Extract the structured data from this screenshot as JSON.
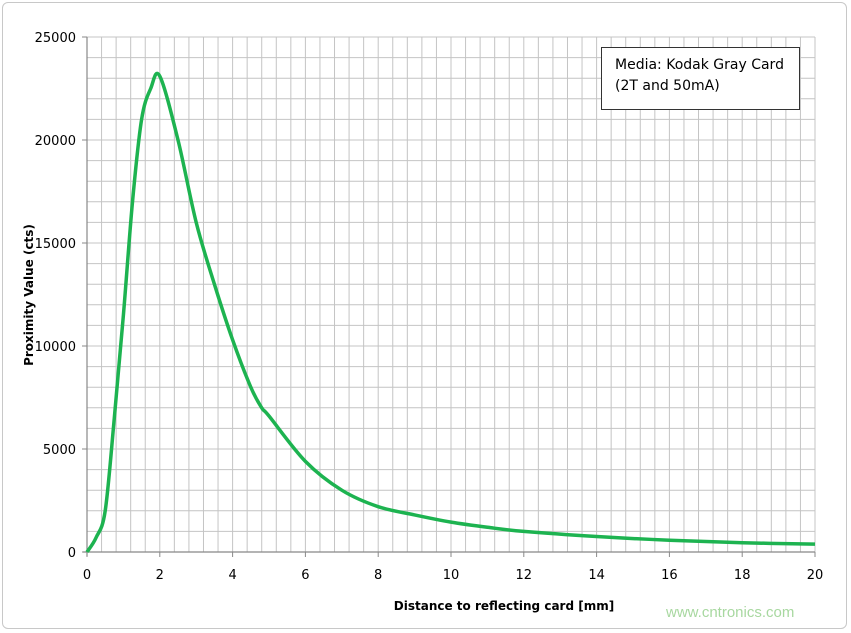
{
  "chart_data": {
    "type": "line",
    "xlabel": "Distance  to reflecting card [mm]",
    "ylabel": "Proximity Value (cts)",
    "xlim": [
      0,
      20
    ],
    "ylim": [
      0,
      25000
    ],
    "xticks": [
      0,
      2,
      4,
      6,
      8,
      10,
      12,
      14,
      16,
      18,
      20
    ],
    "yticks": [
      0,
      5000,
      10000,
      15000,
      20000,
      25000
    ],
    "grid": true,
    "legend_text": [
      "Media: Kodak Gray Card",
      "(2T and 50mA)"
    ],
    "legend_placement": "top-right",
    "series": [
      {
        "color": "#1db350",
        "x": [
          0,
          0.25,
          0.5,
          0.75,
          1,
          1.25,
          1.5,
          1.75,
          2,
          2.5,
          3,
          3.5,
          4,
          4.5,
          4.8,
          5,
          6,
          7,
          8,
          9,
          10,
          11,
          12,
          14,
          16,
          18,
          20
        ],
        "y": [
          0,
          700,
          2000,
          6500,
          11500,
          17000,
          21000,
          22500,
          23100,
          20000,
          16000,
          13000,
          10300,
          8000,
          7000,
          6600,
          4400,
          3000,
          2200,
          1800,
          1450,
          1200,
          1000,
          750,
          570,
          450,
          380
        ]
      }
    ]
  },
  "watermark": "www.cntronics.com"
}
